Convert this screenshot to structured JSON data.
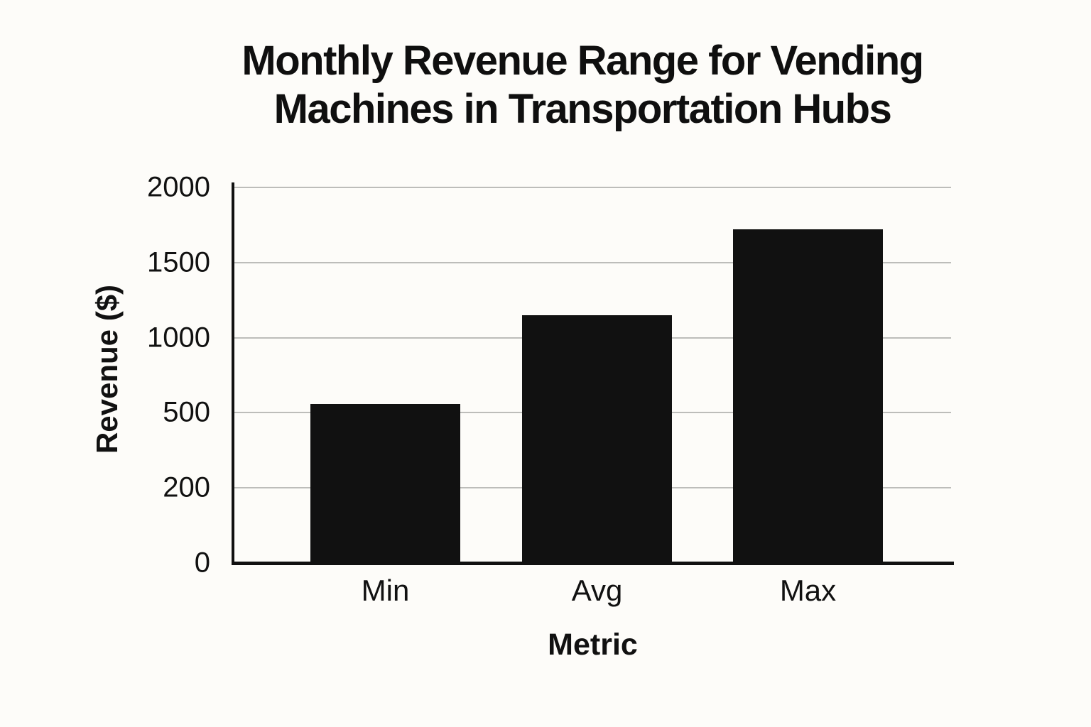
{
  "page": {
    "background": "#fdfcf9",
    "text_color": "#111111"
  },
  "chart_data": {
    "type": "bar",
    "title": "Monthly Revenue Range for Vending Machines in Transportation Hubs",
    "title_lines": [
      "Monthly Revenue Range for Vending",
      "Machines in Transportation Hubs"
    ],
    "xlabel": "Metric",
    "ylabel": "Revenue ($)",
    "categories": [
      "Min",
      "Avg",
      "Max"
    ],
    "values": [
      560,
      1150,
      1720
    ],
    "y_ticks": [
      0,
      200,
      500,
      1000,
      1500,
      2000
    ],
    "ylim": [
      0,
      2000
    ],
    "y_axis_note": "tick labels evenly spaced; value scale is piecewise between tick values",
    "grid": "horizontal gridlines on",
    "legend": "none",
    "colors": {
      "bar": "#111111",
      "gridline": "#bdbdba",
      "axis": "#111111",
      "background": "#fdfcf9",
      "text": "#111111"
    }
  }
}
